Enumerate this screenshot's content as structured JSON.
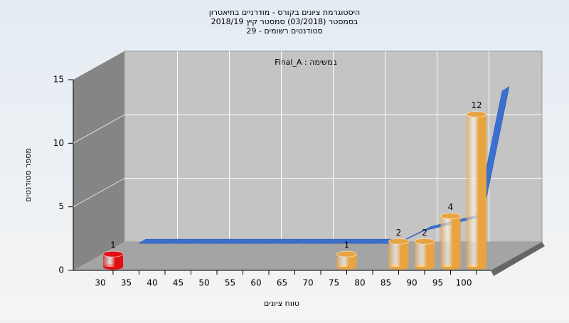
{
  "chart_data": {
    "type": "bar3d",
    "title": [
      "היסטוגרמת ציונים בקורס - מודרניים בתיאטרון",
      "בסמסטר  (03/2018)  סמסטר קיץ 2018/19",
      "סטודנטים רשומים - 29"
    ],
    "annotation": "במשימה : Final_A",
    "x_label": "טווח ציונים",
    "y_label": "מספר סטודנטים",
    "categories": [
      30,
      35,
      40,
      45,
      50,
      55,
      60,
      65,
      70,
      75,
      80,
      85,
      90,
      95,
      100
    ],
    "values": [
      1,
      0,
      0,
      0,
      0,
      0,
      0,
      0,
      0,
      1,
      0,
      2,
      2,
      4,
      12
    ],
    "bar_colors": [
      "#e01010",
      "#e8a440",
      "#e8a440",
      "#e8a440",
      "#e8a440",
      "#e8a440",
      "#e8a440",
      "#e8a440",
      "#e8a440",
      "#e8a440",
      "#e8a440",
      "#e8a440",
      "#e8a440",
      "#e8a440",
      "#e8a440"
    ],
    "curve": {
      "color": "#3a70d0",
      "values": [
        1,
        1,
        1,
        1,
        1,
        1,
        1,
        1,
        1,
        1,
        1,
        2,
        2.5,
        3,
        13
      ]
    },
    "ylim": [
      0,
      15
    ],
    "yticks": [
      0,
      5,
      10,
      15
    ],
    "grid": true
  }
}
